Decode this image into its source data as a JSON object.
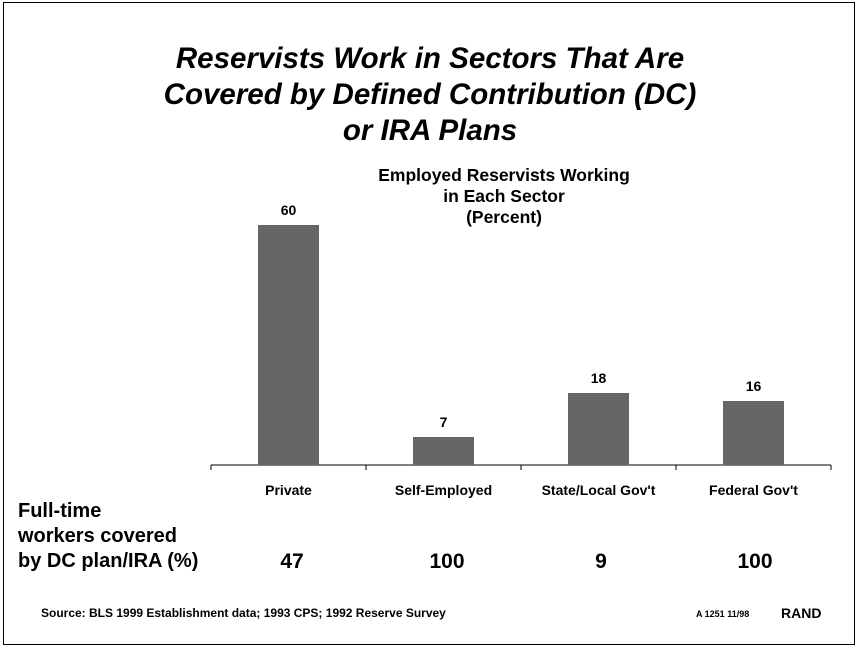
{
  "title_lines": [
    "Reservists Work in Sectors That Are",
    "Covered by Defined Contribution (DC)",
    "or IRA Plans"
  ],
  "chart_data": {
    "type": "bar",
    "title": "Employed Reservists Working in Each Sector (Percent)",
    "title_lines": [
      "Employed Reservists Working",
      "in Each Sector",
      "(Percent)"
    ],
    "categories": [
      "Private",
      "Self-Employed",
      "State/Local Gov't",
      "Federal Gov't"
    ],
    "values": [
      60,
      7,
      18,
      16
    ],
    "data_labels": [
      "60",
      "7",
      "18",
      "16"
    ],
    "ylim": [
      0,
      60
    ],
    "grid": false,
    "bar_color": "#666666"
  },
  "coverage": {
    "label_lines": [
      "Full-time",
      "workers covered",
      "by DC plan/IRA (%)"
    ],
    "values": [
      "47",
      "100",
      "9",
      "100"
    ]
  },
  "footer": {
    "source": "Source: BLS 1999 Establishment data; 1993 CPS; 1992 Reserve Survey",
    "doc_id": "A 1251 11/98",
    "brand": "RAND"
  }
}
